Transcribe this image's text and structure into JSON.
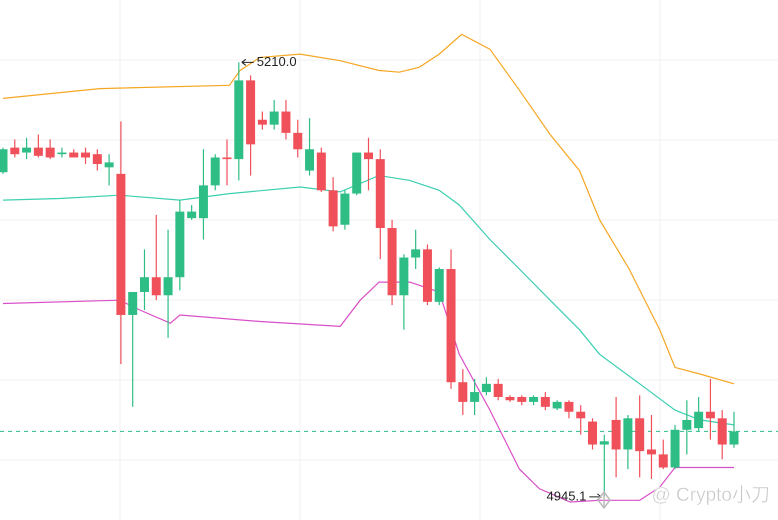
{
  "chart_data": {
    "type": "candlestick",
    "ylim": [
      4931,
      5248
    ],
    "up_color": "#2ebd85",
    "down_color": "#f0505a",
    "categories": [
      null,
      null,
      null,
      null,
      null,
      null,
      null,
      null,
      null,
      null,
      null,
      null,
      null,
      null,
      null,
      null,
      null,
      null,
      null,
      null,
      null,
      null,
      null,
      null,
      null,
      null,
      null,
      null,
      null,
      null,
      null,
      null,
      null,
      null,
      null,
      null,
      null,
      null,
      null,
      null,
      null,
      null,
      null,
      null,
      null,
      null,
      null,
      null,
      null,
      null,
      null,
      null,
      null,
      null,
      null,
      null,
      null,
      null,
      null,
      null,
      null,
      null,
      null
    ],
    "candles": [
      [
        5143,
        5158,
        5142,
        5157
      ],
      [
        5158,
        5163,
        5152,
        5154
      ],
      [
        5155,
        5164,
        5151,
        5158
      ],
      [
        5158,
        5166,
        5152,
        5153
      ],
      [
        5158,
        5163,
        5151,
        5152
      ],
      [
        5154,
        5158,
        5152,
        5155
      ],
      [
        5155,
        5157,
        5152,
        5152
      ],
      [
        5155,
        5158,
        5148,
        5152
      ],
      [
        5154,
        5157,
        5144,
        5148
      ],
      [
        5146,
        5154,
        5135,
        5149
      ],
      [
        5142,
        5174,
        5026,
        5056
      ],
      [
        5056,
        5070,
        5000,
        5070
      ],
      [
        5070,
        5096,
        5059,
        5079
      ],
      [
        5079,
        5117,
        5065,
        5068
      ],
      [
        5068,
        5108,
        5042,
        5079
      ],
      [
        5079,
        5126,
        5071,
        5119
      ],
      [
        5115,
        5123,
        5114,
        5119
      ],
      [
        5115,
        5157,
        5102,
        5135
      ],
      [
        5135,
        5154,
        5132,
        5152
      ],
      [
        5152,
        5163,
        5135,
        5151
      ],
      [
        5151,
        5210.0,
        5138,
        5199
      ],
      [
        5199,
        5202,
        5141,
        5160
      ],
      [
        5175,
        5180,
        5169,
        5172
      ],
      [
        5172,
        5187,
        5169,
        5180
      ],
      [
        5180,
        5187,
        5163,
        5167
      ],
      [
        5167,
        5175,
        5152,
        5157
      ],
      [
        5144,
        5176,
        5141,
        5157
      ],
      [
        5155,
        5158,
        5131,
        5132
      ],
      [
        5132,
        5140,
        5107,
        5110
      ],
      [
        5111,
        5132,
        5108,
        5130
      ],
      [
        5130,
        5155,
        5129,
        5155
      ],
      [
        5155,
        5164,
        5132,
        5151
      ],
      [
        5151,
        5157,
        5090,
        5109
      ],
      [
        5109,
        5114,
        5062,
        5068
      ],
      [
        5068,
        5093,
        5047,
        5091
      ],
      [
        5091,
        5108,
        5084,
        5096
      ],
      [
        5096,
        5099,
        5062,
        5064
      ],
      [
        5064,
        5085,
        5062,
        5084
      ],
      [
        5084,
        5096,
        5011,
        5015
      ],
      [
        5015,
        5023,
        4995,
        5003
      ],
      [
        5003,
        5017,
        4995,
        5009
      ],
      [
        5009,
        5018,
        5007,
        5014
      ],
      [
        5014,
        5017,
        5004,
        5006
      ],
      [
        5006,
        5007,
        5003,
        5004
      ],
      [
        5006,
        5007,
        5001,
        5003
      ],
      [
        5003,
        5007,
        5001,
        5006
      ],
      [
        5006,
        5009,
        4998,
        5000
      ],
      [
        4999,
        5004,
        4998,
        5003
      ],
      [
        5003,
        5004,
        4993,
        4997
      ],
      [
        4997,
        5001,
        4983,
        4993
      ],
      [
        4991,
        4993,
        4974,
        4977
      ],
      [
        4977,
        4983,
        4945.1,
        4979
      ],
      [
        4992,
        5006,
        4957,
        4974
      ],
      [
        4974,
        4995,
        4962,
        4993
      ],
      [
        4993,
        5007,
        4957,
        4973
      ],
      [
        4974,
        4995,
        4956,
        4971
      ],
      [
        4971,
        4980,
        4962,
        4963
      ],
      [
        4963,
        4989,
        4962,
        4986
      ],
      [
        4986,
        5004,
        4971,
        4992
      ],
      [
        4987,
        5006,
        4985,
        4997
      ],
      [
        4997,
        5017,
        4980,
        4993
      ],
      [
        4993,
        4998,
        4968,
        4977
      ],
      [
        4977,
        4997,
        4975,
        4985
      ]
    ],
    "bands": [
      {
        "color": "#f5a623",
        "x": [
          0,
          8.2,
          19.2,
          20.1,
          21.8,
          25.2,
          28.6,
          31.9,
          33.6,
          35.3,
          37,
          38.9,
          41.3,
          43.8,
          46.4,
          48.9,
          50.6,
          53.1,
          55.7,
          57,
          59.1,
          62
        ],
        "values": [
          5188,
          5194,
          5196,
          5205,
          5213,
          5215,
          5211,
          5205,
          5204,
          5207,
          5215,
          5227,
          5218,
          5193,
          5166,
          5144,
          5114,
          5084,
          5047,
          5024,
          5020,
          5014
        ]
      },
      {
        "color": "#3ccfb0",
        "x": [
          0,
          4.8,
          9.9,
          15,
          19.2,
          25.2,
          28.6,
          31.9,
          34.5,
          37,
          38.7,
          41.3,
          43.8,
          46.4,
          48.9,
          50.6,
          54,
          57,
          59.1,
          62
        ],
        "values": [
          5126,
          5127,
          5129,
          5126,
          5130,
          5134,
          5131,
          5141,
          5138,
          5132,
          5123,
          5102,
          5084,
          5065,
          5047,
          5032,
          5014,
          4998,
          4992,
          4989
        ]
      },
      {
        "color": "#d94fc8",
        "x": [
          0,
          9.9,
          11.6,
          14.2,
          15,
          21.8,
          28.6,
          30.3,
          31.9,
          34.5,
          37,
          38.7,
          41.3,
          43.8,
          45.5,
          48.1,
          50.6,
          54,
          55.7,
          57,
          62
        ],
        "values": [
          5063,
          5065,
          5059,
          5051,
          5056,
          5052,
          5049,
          5065,
          5076,
          5076,
          5070,
          5032,
          4998,
          4962,
          4950,
          4942,
          4943,
          4943,
          4951,
          4963,
          4963
        ]
      }
    ],
    "price_line": {
      "value": 4985,
      "color": "#2ebd85"
    },
    "annotations": [
      {
        "text": "5210.0",
        "value": 5210.0,
        "index": 20,
        "side": "right"
      },
      {
        "text": "4945.1",
        "value": 4945.1,
        "index": 51,
        "side": "left"
      }
    ],
    "watermark": "@ Crypto小刀"
  }
}
